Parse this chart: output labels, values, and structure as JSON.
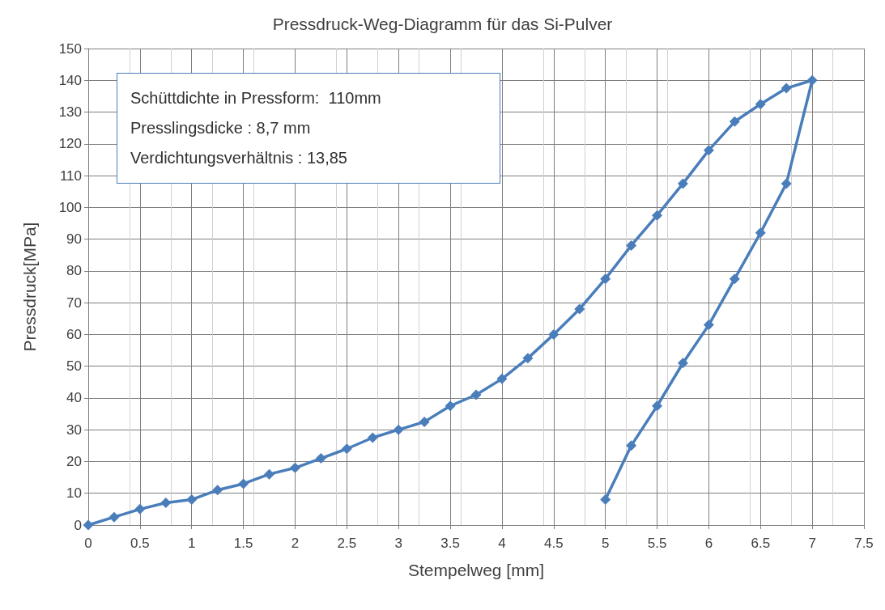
{
  "chart_data": {
    "type": "line",
    "title": "Pressdruck-Weg-Diagramm für das Si-Pulver",
    "xlabel": "Stempelweg [mm]",
    "ylabel": "Pressdruck[MPa]",
    "annotations": [
      "Schüttdichte in Pressform:  110mm",
      "Presslingsdicke : 8,7 mm",
      "Verdichtungsverhältnis : 13,85"
    ],
    "series": [
      {
        "color": "#4a7ebb",
        "x": [
          0,
          0.25,
          0.5,
          0.75,
          1,
          1.25,
          1.5,
          1.75,
          2,
          2.25,
          2.5,
          2.75,
          3,
          3.25,
          3.5,
          3.75,
          4,
          4.25,
          4.5,
          4.75,
          5,
          5.25,
          5.5,
          5.75,
          6,
          6.25,
          6.5,
          6.75,
          7,
          6.75,
          6.5,
          6.25,
          6,
          5.75,
          5.5,
          5.25,
          5
        ],
        "values": [
          0,
          2.5,
          5,
          7,
          8,
          11,
          13,
          16,
          18,
          21,
          24,
          27.5,
          30,
          32.5,
          37.5,
          41,
          46,
          52.5,
          60,
          68,
          77.5,
          88,
          97.5,
          107.5,
          118,
          127,
          132.5,
          137.5,
          140,
          107.5,
          92,
          77.5,
          63,
          51,
          37.5,
          25,
          8
        ]
      }
    ],
    "xlim": [
      0,
      7.5
    ],
    "xticks": [
      0,
      0.5,
      1,
      1.5,
      2,
      2.5,
      3,
      3.5,
      4,
      4.5,
      5,
      5.5,
      6,
      6.5,
      7,
      7.5
    ],
    "ylim": [
      0,
      150
    ],
    "yticks": [
      0,
      10,
      20,
      30,
      40,
      50,
      60,
      70,
      80,
      90,
      100,
      110,
      120,
      130,
      140,
      150
    ],
    "grid": true,
    "marker": "diamond",
    "line_style": "solid"
  }
}
